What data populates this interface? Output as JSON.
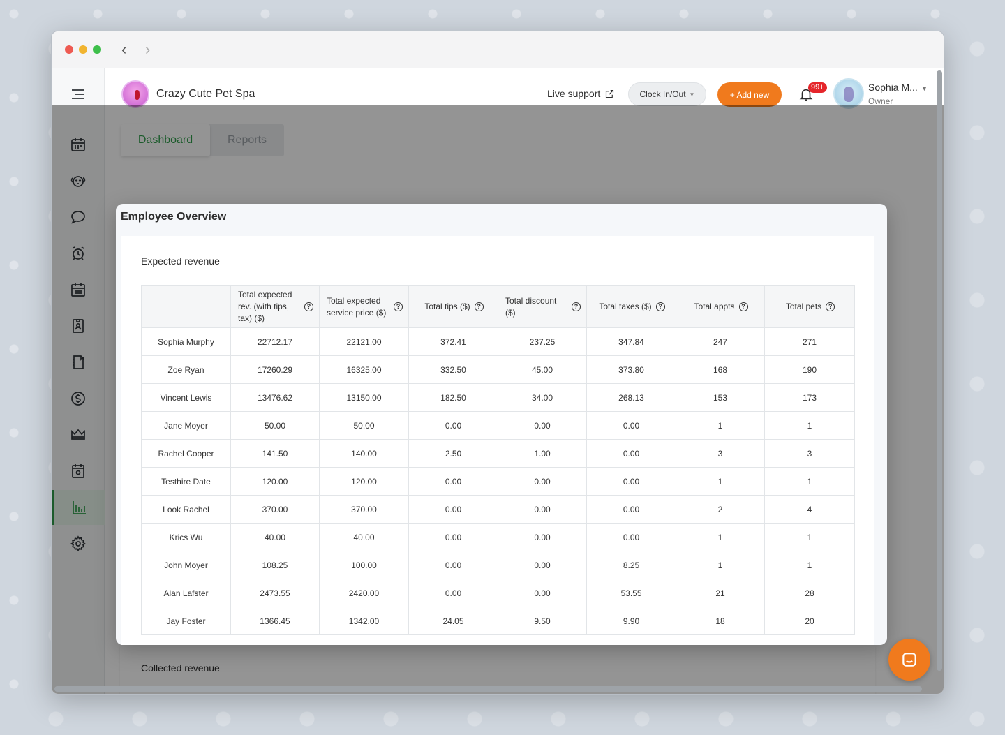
{
  "app": {
    "business_name": "Crazy Cute Pet Spa",
    "live_support": "Live support",
    "clock_button": "Clock In/Out",
    "add_new": "+ Add new",
    "notification_badge": "99+",
    "user_name": "Sophia M...",
    "user_role": "Owner",
    "accent_color": "#2f9e4a",
    "brand_orange": "#f07a1d"
  },
  "tabs": [
    {
      "label": "Dashboard",
      "active": true
    },
    {
      "label": "Reports",
      "active": false
    }
  ],
  "sidebar": {
    "icons": [
      "menu-icon",
      "calendar-icon",
      "pet-face-icon",
      "chat-icon",
      "alarm-clock-icon",
      "schedule-icon",
      "contact-card-icon",
      "notebook-icon",
      "dollar-icon",
      "crown-icon",
      "appointment-icon",
      "bar-chart-icon",
      "settings-icon"
    ],
    "active": "bar-chart-icon"
  },
  "modal": {
    "title": "Employee Overview",
    "section_title": "Expected revenue",
    "columns": [
      "",
      "Total expected rev. (with tips, tax) ($)",
      "Total expected service price ($)",
      "Total tips ($)",
      "Total discount ($)",
      "Total taxes ($)",
      "Total appts",
      "Total pets"
    ],
    "rows": [
      [
        "Sophia Murphy",
        "22712.17",
        "22121.00",
        "372.41",
        "237.25",
        "347.84",
        "247",
        "271"
      ],
      [
        "Zoe Ryan",
        "17260.29",
        "16325.00",
        "332.50",
        "45.00",
        "373.80",
        "168",
        "190"
      ],
      [
        "Vincent Lewis",
        "13476.62",
        "13150.00",
        "182.50",
        "34.00",
        "268.13",
        "153",
        "173"
      ],
      [
        "Jane Moyer",
        "50.00",
        "50.00",
        "0.00",
        "0.00",
        "0.00",
        "1",
        "1"
      ],
      [
        "Rachel Cooper",
        "141.50",
        "140.00",
        "2.50",
        "1.00",
        "0.00",
        "3",
        "3"
      ],
      [
        "Testhire Date",
        "120.00",
        "120.00",
        "0.00",
        "0.00",
        "0.00",
        "1",
        "1"
      ],
      [
        "Look Rachel",
        "370.00",
        "370.00",
        "0.00",
        "0.00",
        "0.00",
        "2",
        "4"
      ],
      [
        "Krics Wu",
        "40.00",
        "40.00",
        "0.00",
        "0.00",
        "0.00",
        "1",
        "1"
      ],
      [
        "John Moyer",
        "108.25",
        "100.00",
        "0.00",
        "0.00",
        "8.25",
        "1",
        "1"
      ],
      [
        "Alan Lafster",
        "2473.55",
        "2420.00",
        "0.00",
        "0.00",
        "53.55",
        "21",
        "28"
      ],
      [
        "Jay Foster",
        "1366.45",
        "1342.00",
        "24.05",
        "9.50",
        "9.90",
        "18",
        "20"
      ]
    ]
  },
  "background_section": {
    "title": "Collected revenue"
  }
}
